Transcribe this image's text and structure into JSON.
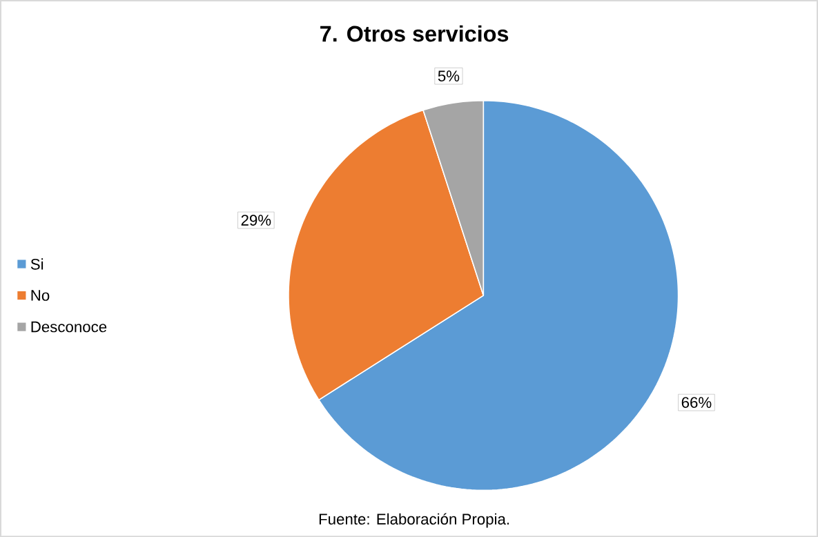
{
  "chart_data": {
    "type": "pie",
    "title": "7. Otros servicios",
    "categories": [
      "Si",
      "No",
      "Desconoce"
    ],
    "values": [
      66,
      29,
      5
    ],
    "colors": [
      "#5b9bd5",
      "#ed7d31",
      "#a5a5a5"
    ],
    "value_labels": [
      "66%",
      "29%",
      "5%"
    ],
    "legend": "left",
    "annotations": [
      "Fuente: Elaboración Propia."
    ]
  }
}
